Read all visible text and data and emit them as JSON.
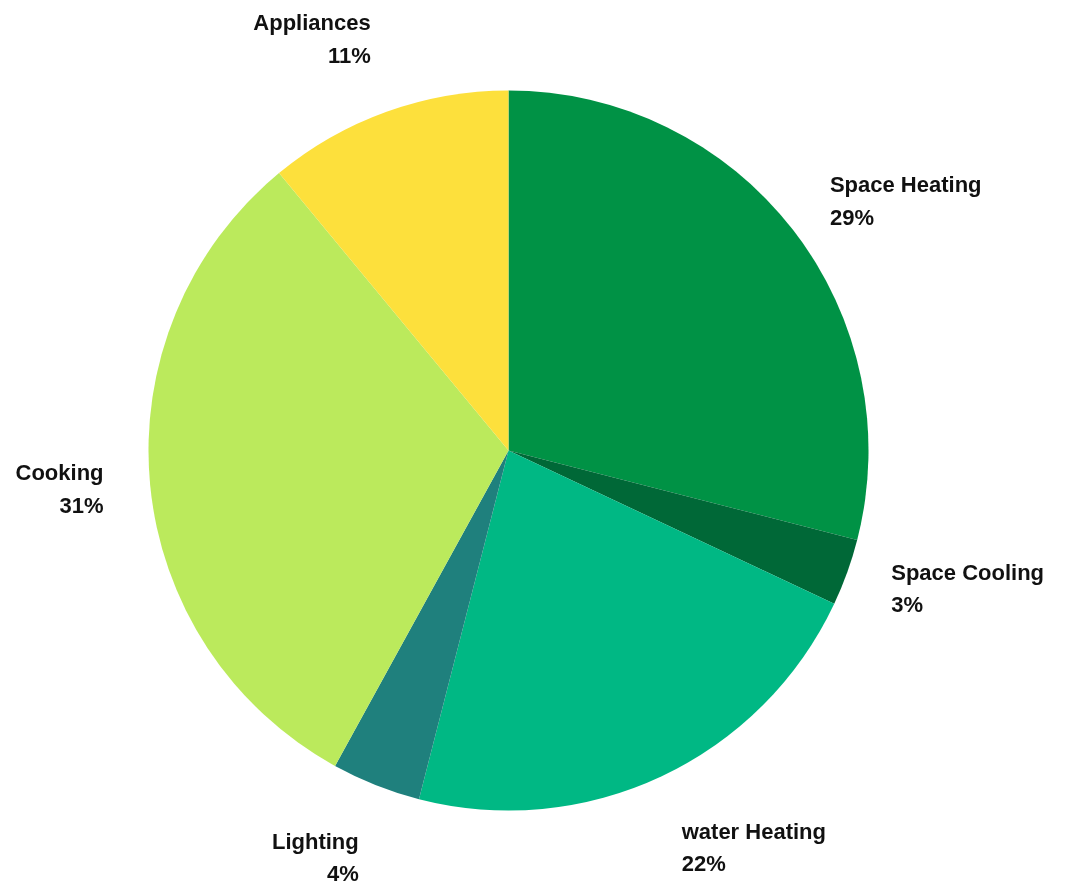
{
  "chart_data": {
    "type": "pie",
    "categories": [
      "Space Heating",
      "Space Cooling",
      "water Heating",
      "Lighting",
      "Cooking",
      "Appliances"
    ],
    "values": [
      29,
      3,
      22,
      4,
      31,
      11
    ],
    "value_labels": [
      "29%",
      "3%",
      "22%",
      "4%",
      "31%",
      "11%"
    ],
    "colors": [
      "#009245",
      "#006837",
      "#00b884",
      "#1f807d",
      "#bbea5c",
      "#fde03c"
    ],
    "legend": false
  }
}
